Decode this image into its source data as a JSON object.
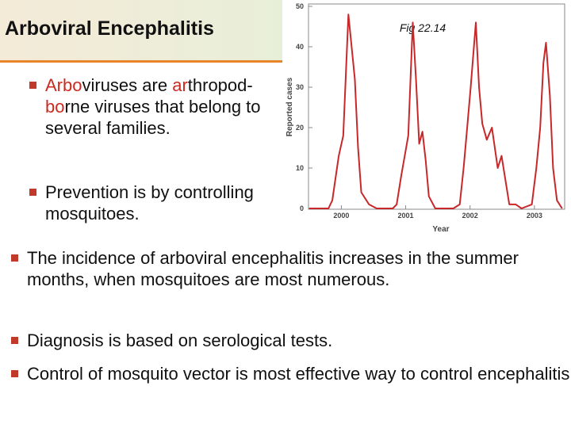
{
  "header": {
    "title": "Arboviral Encephalitis"
  },
  "top_bullets": [
    [
      "Arbo",
      "viruses are ",
      "ar",
      "thropod-",
      "bo",
      "rne viruses that belong to several families."
    ],
    [
      "Prevention is by controlling mosquitoes."
    ]
  ],
  "bottom_bullets": [
    "The incidence of arboviral encephalitis increases in the summer months, when mosquitoes are most numerous.",
    "Diagnosis is based on serological tests.",
    "Control of mosquito vector is most effective way to control encephalitis."
  ],
  "chart_data": {
    "type": "line",
    "title": "Fig 22.14",
    "xlabel": "Year",
    "ylabel": "Reported cases",
    "x": [
      1999.5,
      1999.8,
      1999.86,
      1999.96,
      2000.03,
      2000.11,
      2000.21,
      2000.26,
      2000.31,
      2000.43,
      2000.55,
      2000.8,
      2000.86,
      2000.93,
      2001.04,
      2001.11,
      2001.16,
      2001.21,
      2001.26,
      2001.31,
      2001.36,
      2001.46,
      2001.74,
      2001.84,
      2001.9,
      2001.95,
      2002.01,
      2002.09,
      2002.14,
      2002.19,
      2002.26,
      2002.34,
      2002.43,
      2002.49,
      2002.61,
      2002.71,
      2002.8,
      2002.96,
      2003.03,
      2003.09,
      2003.14,
      2003.18,
      2003.24,
      2003.29,
      2003.35,
      2003.43
    ],
    "series": [
      {
        "name": "Reported cases",
        "color": "#c8282a",
        "values": [
          0,
          0,
          2,
          13,
          18,
          48,
          32,
          15,
          4,
          1,
          0,
          0,
          1,
          8,
          18,
          46,
          32,
          16,
          19,
          12,
          3,
          0,
          0,
          1,
          10,
          19,
          30,
          46,
          30,
          21,
          17,
          20,
          10,
          13,
          1,
          1,
          0,
          1,
          10,
          20,
          36,
          41,
          28,
          10,
          2,
          0
        ]
      }
    ],
    "xlim": [
      1999.49,
      2003.47
    ],
    "xticks": [
      2000,
      2001,
      2002,
      2003
    ],
    "ylim": [
      0,
      50
    ],
    "yticks": [
      0,
      10,
      20,
      30,
      40,
      50
    ]
  }
}
